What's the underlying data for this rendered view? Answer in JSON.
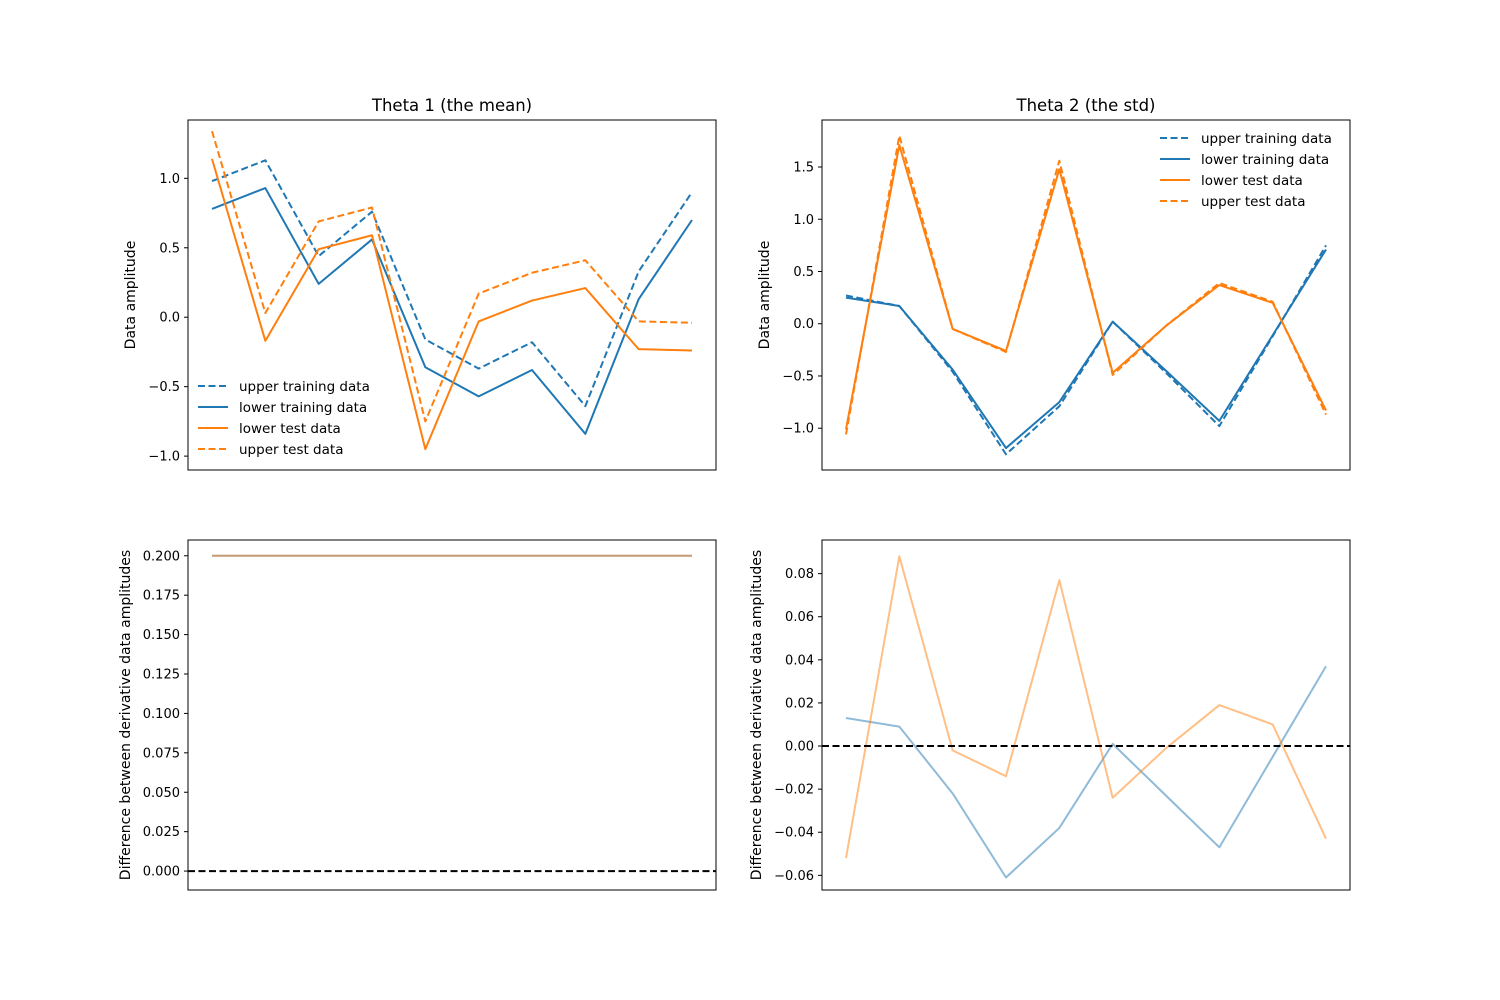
{
  "colors": {
    "blue": "#1f77b4",
    "orange": "#ff7f0e",
    "zero_line": "#000000"
  },
  "chart_data": [
    {
      "id": "theta1-amplitude",
      "type": "line",
      "title": "Theta 1 (the mean)",
      "xlabel": "",
      "ylabel": "Data amplitude",
      "xlim": [
        -0.45,
        9.45
      ],
      "ylim": [
        -1.1,
        1.42
      ],
      "yticks": [
        -1.0,
        -0.5,
        0.0,
        0.5,
        1.0
      ],
      "xticks_visible": false,
      "grid": false,
      "legend": "lower-left",
      "x": [
        0,
        1,
        2,
        3,
        4,
        5,
        6,
        7,
        8,
        9
      ],
      "series": [
        {
          "name": "upper training data",
          "color": "blue",
          "style": "dashed",
          "values": [
            0.98,
            1.13,
            0.44,
            0.76,
            -0.16,
            -0.37,
            -0.18,
            -0.64,
            0.33,
            0.9
          ]
        },
        {
          "name": "lower training data",
          "color": "blue",
          "style": "solid",
          "values": [
            0.78,
            0.93,
            0.24,
            0.56,
            -0.36,
            -0.57,
            -0.38,
            -0.84,
            0.13,
            0.7
          ]
        },
        {
          "name": "lower test data",
          "color": "orange",
          "style": "solid",
          "values": [
            1.14,
            -0.17,
            0.49,
            0.59,
            -0.95,
            -0.03,
            0.12,
            0.21,
            -0.23,
            -0.24
          ]
        },
        {
          "name": "upper test data",
          "color": "orange",
          "style": "dashed",
          "values": [
            1.34,
            0.03,
            0.69,
            0.79,
            -0.75,
            0.17,
            0.32,
            0.41,
            -0.03,
            -0.04
          ]
        }
      ]
    },
    {
      "id": "theta2-amplitude",
      "type": "line",
      "title": "Theta 2 (the std)",
      "xlabel": "",
      "ylabel": "Data amplitude",
      "xlim": [
        -0.45,
        9.45
      ],
      "ylim": [
        -1.4,
        1.95
      ],
      "yticks": [
        -1.0,
        -0.5,
        0.0,
        0.5,
        1.0,
        1.5
      ],
      "xticks_visible": false,
      "grid": false,
      "legend": "upper-right",
      "x": [
        0,
        1,
        2,
        3,
        4,
        5,
        6,
        7,
        8,
        9
      ],
      "series": [
        {
          "name": "upper training data",
          "color": "blue",
          "style": "dashed",
          "values": [
            0.27,
            0.17,
            -0.46,
            -1.25,
            -0.79,
            0.02,
            -0.47,
            -0.98,
            -0.12,
            0.75
          ]
        },
        {
          "name": "lower training data",
          "color": "blue",
          "style": "solid",
          "values": [
            0.25,
            0.17,
            -0.44,
            -1.19,
            -0.75,
            0.02,
            -0.45,
            -0.93,
            -0.11,
            0.71
          ]
        },
        {
          "name": "lower test data",
          "color": "orange",
          "style": "solid",
          "values": [
            -1.01,
            1.71,
            -0.05,
            -0.26,
            1.48,
            -0.47,
            -0.02,
            0.37,
            0.2,
            -0.83
          ]
        },
        {
          "name": "upper test data",
          "color": "orange",
          "style": "dashed",
          "values": [
            -1.06,
            1.8,
            -0.05,
            -0.27,
            1.56,
            -0.49,
            -0.02,
            0.39,
            0.21,
            -0.87
          ]
        }
      ]
    },
    {
      "id": "theta1-difference",
      "type": "line",
      "title": "",
      "xlabel": "",
      "ylabel": "Difference between derivative data amplitudes",
      "xlim": [
        -0.45,
        9.45
      ],
      "ylim": [
        -0.012,
        0.21
      ],
      "yticks": [
        0.0,
        0.025,
        0.05,
        0.075,
        0.1,
        0.125,
        0.15,
        0.175,
        0.2
      ],
      "ytick_labels": [
        "0.000",
        "0.025",
        "0.050",
        "0.075",
        "0.100",
        "0.125",
        "0.150",
        "0.175",
        "0.200"
      ],
      "xticks_visible": false,
      "grid": false,
      "reference_line": 0.0,
      "x": [
        0,
        1,
        2,
        3,
        4,
        5,
        6,
        7,
        8,
        9
      ],
      "series": [
        {
          "color": "blue",
          "style": "solid",
          "opacity": 0.5,
          "values": [
            0.2,
            0.2,
            0.2,
            0.2,
            0.2,
            0.2,
            0.2,
            0.2,
            0.2,
            0.2
          ]
        },
        {
          "color": "orange",
          "style": "solid",
          "opacity": 0.5,
          "values": [
            0.2,
            0.2,
            0.2,
            0.2,
            0.2,
            0.2,
            0.2,
            0.2,
            0.2,
            0.2
          ]
        }
      ]
    },
    {
      "id": "theta2-difference",
      "type": "line",
      "title": "",
      "xlabel": "",
      "ylabel": "Difference between derivative data amplitudes",
      "xlim": [
        -0.45,
        9.45
      ],
      "ylim": [
        -0.0668,
        0.0956
      ],
      "yticks": [
        -0.06,
        -0.04,
        -0.02,
        0.0,
        0.02,
        0.04,
        0.06,
        0.08
      ],
      "ytick_labels": [
        "−0.06",
        "−0.04",
        "−0.02",
        "0.00",
        "0.02",
        "0.04",
        "0.06",
        "0.08"
      ],
      "xticks_visible": false,
      "grid": false,
      "reference_line": 0.0,
      "x": [
        0,
        1,
        2,
        3,
        4,
        5,
        6,
        7,
        8,
        9
      ],
      "series": [
        {
          "color": "blue",
          "style": "solid",
          "opacity": 0.5,
          "values": [
            0.013,
            0.009,
            -0.022,
            -0.061,
            -0.038,
            0.001,
            -0.023,
            -0.047,
            -0.005,
            0.037
          ]
        },
        {
          "color": "orange",
          "style": "solid",
          "opacity": 0.5,
          "values": [
            -0.052,
            0.088,
            -0.002,
            -0.014,
            0.077,
            -0.024,
            -0.001,
            0.019,
            0.01,
            -0.043
          ]
        }
      ]
    }
  ]
}
